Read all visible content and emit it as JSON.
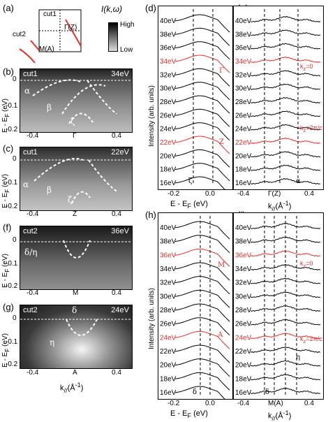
{
  "panel_a": {
    "label": "(a)",
    "cut1": "cut1",
    "cut2": "cut2",
    "gamma": "Γ(Z)",
    "m": "M(A)",
    "legend_title": "I(k,ω)",
    "legend_high": "High",
    "legend_low": "Low"
  },
  "panels_arpes": [
    {
      "label": "(b)",
      "cut": "cut1",
      "energy": "34eV",
      "kpoint": "Γ",
      "bands": [
        "α",
        "β",
        "ζ"
      ]
    },
    {
      "label": "(c)",
      "cut": "cut1",
      "energy": "22eV",
      "kpoint": "Z",
      "bands": [
        "α",
        "β",
        "ζ"
      ]
    },
    {
      "label": "(f)",
      "cut": "cut2",
      "energy": "36eV",
      "kpoint": "M",
      "bands": [
        "δ/η"
      ]
    },
    {
      "label": "(g)",
      "cut": "cut2",
      "energy": "24eV",
      "kpoint": "A",
      "bands": [
        "δ",
        "η"
      ]
    }
  ],
  "arpes_axes": {
    "ylabel": "E - E",
    "ylabel_sub": "F",
    "ylabel_unit": " (eV)",
    "yticks": [
      "0",
      "-0.1",
      "-0.2"
    ],
    "xticks_left": "-0.4",
    "xticks_right": "0.4",
    "xlabel": "k",
    "xlabel_sub": "//",
    "xlabel_unit": "(Å",
    "xlabel_sup": "-1",
    "xlabel_end": ")"
  },
  "panels_edc": [
    {
      "label": "(d)",
      "xticks": [
        "-0.2",
        "0.0"
      ],
      "xlabel": "E - E",
      "xlabel_sub": "F",
      "xlabel_unit": " (eV)",
      "bands": [
        "ζ"
      ],
      "markers": [
        "Γ",
        "Z"
      ]
    },
    {
      "label": "(e)",
      "xticks": [
        "-0.4",
        "Γ(Z)",
        "0.4"
      ],
      "bands": [
        "α"
      ],
      "kz_top": "k",
      "kz_top_val": "=0",
      "kz_bot_val": "=2π/c"
    },
    {
      "label": "(h)",
      "xticks": [
        "-0.2",
        "0.0"
      ],
      "xlabel": "E - E",
      "xlabel_sub": "F",
      "xlabel_unit": " (eV)",
      "bands": [
        "δ"
      ],
      "markers": [
        "M",
        "A"
      ]
    },
    {
      "label": "(i)",
      "xticks": [
        "-0.4",
        "M(A)",
        "0.4"
      ],
      "bands": [
        "δ",
        "η"
      ],
      "kz_top_val": "=0",
      "kz_bot_val": "=2π/c"
    }
  ],
  "edc_axes": {
    "ylabel": "Intensity (arb. units)"
  },
  "kxlabel": {
    "k": "k",
    "sub": "//",
    "unit": "(Å",
    "sup": "-1",
    "end": ")"
  },
  "photon_energies": [
    "40eV",
    "38eV",
    "36eV",
    "34eV",
    "32eV",
    "30eV",
    "28eV",
    "26eV",
    "24eV",
    "22eV",
    "20eV",
    "18eV",
    "16eV"
  ],
  "highlight_top": [
    "34eV",
    "22eV",
    "36eV",
    "24eV"
  ],
  "colors": {
    "highlight": "#e8302a",
    "line": "#000000"
  }
}
